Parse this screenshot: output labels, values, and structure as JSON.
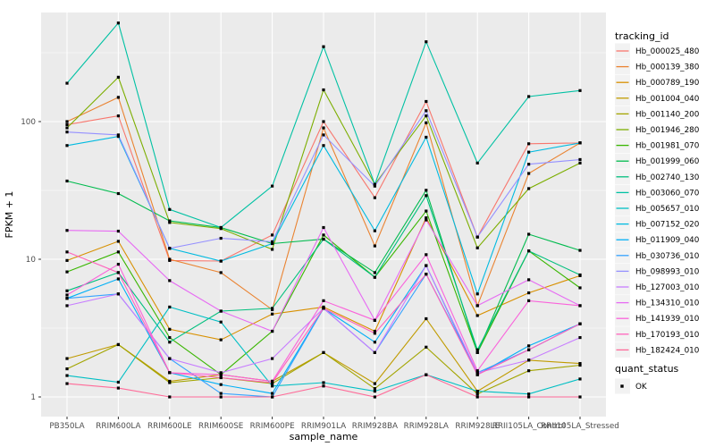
{
  "figure": {
    "background": "#FFFFFF",
    "panel_background": "#EBEBEB",
    "grid_color": "#FFFFFF",
    "tick_mark_color": "#333333",
    "tick_label_color": "#4D4D4D",
    "title_color": "#000000",
    "legend_key_background": "#F2F2F2",
    "marker_color": "#000000"
  },
  "chart_data": {
    "type": "line",
    "title": "",
    "xlabel": "sample_name",
    "ylabel": "FPKM + 1",
    "y_scale": "log10",
    "ylim": [
      0.72,
      620
    ],
    "y_ticks": [
      1,
      10,
      100
    ],
    "y_tick_labels": [
      "1",
      "10",
      "100"
    ],
    "y_minor_ticks": [
      3.162,
      31.62,
      316.2
    ],
    "grid": true,
    "legend_position": "right",
    "legend_title": "tracking_id",
    "legend2_title": "quant_status",
    "legend2_items": [
      {
        "label": "OK",
        "marker": "black-square"
      }
    ],
    "marker": "black-square",
    "categories": [
      "PB350LA",
      "RRIM600LA",
      "RRIM600LE",
      "RRIM600SE",
      "RRIM600PE",
      "RRIM901LA",
      "RRIM928BA",
      "RRIM928LA",
      "RRIM928LE",
      "RRII105LA_Control",
      "RRII105LA_Stressed"
    ],
    "series": [
      {
        "name": "Hb_000025_480",
        "color": "#F8766D",
        "values": [
          95,
          110,
          9.8,
          9.7,
          15,
          100,
          28,
          140,
          14.5,
          69,
          70
        ]
      },
      {
        "name": "Hb_000139_380",
        "color": "#EA8331",
        "values": [
          100,
          150,
          10,
          8,
          4.3,
          90,
          12.5,
          98,
          4.6,
          42,
          70
        ]
      },
      {
        "name": "Hb_000789_190",
        "color": "#D89000",
        "values": [
          9.8,
          13.5,
          3.1,
          2.6,
          4.0,
          4.5,
          3.0,
          20,
          3.9,
          5.7,
          7.6
        ]
      },
      {
        "name": "Hb_001004_040",
        "color": "#C09B00",
        "values": [
          1.9,
          2.4,
          1.3,
          1.45,
          1.3,
          2.1,
          1.25,
          3.7,
          1.1,
          1.85,
          1.75
        ]
      },
      {
        "name": "Hb_001140_200",
        "color": "#A3A500",
        "values": [
          1.6,
          2.4,
          1.27,
          1.38,
          1.25,
          2.1,
          1.15,
          2.3,
          1.05,
          1.55,
          1.7
        ]
      },
      {
        "name": "Hb_001946_280",
        "color": "#7CAE00",
        "values": [
          90,
          210,
          18.5,
          16.7,
          11.8,
          170,
          35,
          110,
          12.1,
          32.6,
          50
        ]
      },
      {
        "name": "Hb_001981_070",
        "color": "#39B600",
        "values": [
          8.1,
          11.3,
          2.7,
          1.45,
          3.0,
          15,
          7.4,
          22.4,
          2.1,
          11.5,
          6.2
        ]
      },
      {
        "name": "Hb_001999_060",
        "color": "#00BB4E",
        "values": [
          37,
          30,
          19,
          17,
          13,
          14,
          8,
          31.7,
          2.1,
          15.2,
          11.6
        ]
      },
      {
        "name": "Hb_002740_130",
        "color": "#00BF7D",
        "values": [
          5.9,
          8,
          2.5,
          4.2,
          4.4,
          14,
          7.4,
          29,
          2.2,
          11.5,
          7.7
        ]
      },
      {
        "name": "Hb_003060_070",
        "color": "#00C1A3",
        "values": [
          190,
          520,
          23,
          17,
          34,
          350,
          35,
          380,
          50,
          152,
          168
        ]
      },
      {
        "name": "Hb_005657_010",
        "color": "#00BFC4",
        "values": [
          1.43,
          1.28,
          4.5,
          3.5,
          1.2,
          1.27,
          1.1,
          1.45,
          1.1,
          1.05,
          1.35
        ]
      },
      {
        "name": "Hb_007152_020",
        "color": "#00BAE0",
        "values": [
          67,
          78,
          12,
          9.7,
          13,
          67,
          16.1,
          77,
          5.6,
          60,
          70
        ]
      },
      {
        "name": "Hb_011909_040",
        "color": "#00B0F6",
        "values": [
          5.2,
          7.2,
          1.5,
          1.23,
          1.06,
          4.4,
          2.5,
          9,
          1.45,
          2.35,
          3.4
        ]
      },
      {
        "name": "Hb_030736_010",
        "color": "#35A2FF",
        "values": [
          5.2,
          5.6,
          1.9,
          1.06,
          1.0,
          4.4,
          2.1,
          7.8,
          1.5,
          2.2,
          3.4
        ]
      },
      {
        "name": "Hb_098993_010",
        "color": "#9590FF",
        "values": [
          84,
          80,
          12,
          14.2,
          13.4,
          80,
          34,
          120,
          14.5,
          49,
          53
        ]
      },
      {
        "name": "Hb_127003_010",
        "color": "#C77CFF",
        "values": [
          4.6,
          5.6,
          1.9,
          1.5,
          1.9,
          4.4,
          2.1,
          9,
          1.5,
          1.85,
          2.7
        ]
      },
      {
        "name": "Hb_134310_010",
        "color": "#E76BF3",
        "values": [
          16.2,
          16,
          7,
          4.2,
          3.0,
          17,
          3.6,
          19.3,
          4.6,
          7.1,
          4.6
        ]
      },
      {
        "name": "Hb_141939_010",
        "color": "#FA62DB",
        "values": [
          5.5,
          9.2,
          1.5,
          1.45,
          1.3,
          5,
          3.6,
          10.8,
          1.55,
          5,
          4.6
        ]
      },
      {
        "name": "Hb_170193_010",
        "color": "#FF62BC",
        "values": [
          11.3,
          8,
          1.5,
          1.38,
          1.27,
          4.4,
          2.9,
          7.8,
          1.45,
          2.2,
          3.4
        ]
      },
      {
        "name": "Hb_182424_010",
        "color": "#FF6A98",
        "values": [
          1.25,
          1.16,
          1.0,
          1.0,
          1.0,
          1.2,
          1.0,
          1.45,
          1.0,
          1.0,
          1.0
        ]
      }
    ]
  }
}
